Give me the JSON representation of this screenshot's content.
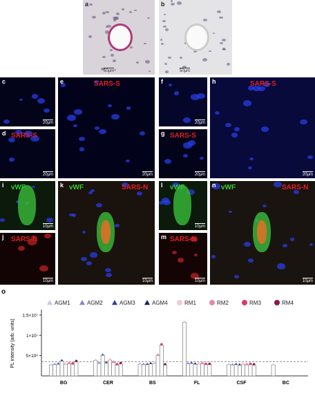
{
  "panels": [
    {
      "label": "a",
      "scale": "50µm",
      "stains": []
    },
    {
      "label": "b",
      "scale": "50µm",
      "stains": []
    },
    {
      "label": "c",
      "scale": "20µm",
      "stains": []
    },
    {
      "label": "d",
      "scale": "20µm",
      "stains": [
        {
          "text": "SARS-S",
          "color": "#e02020"
        }
      ]
    },
    {
      "label": "e",
      "scale": "20µm",
      "stains": [
        {
          "text": "SARS-S",
          "color": "#e02020"
        }
      ]
    },
    {
      "label": "f",
      "scale": "20µm",
      "stains": []
    },
    {
      "label": "g",
      "scale": "20µm",
      "stains": [
        {
          "text": "SARS-S",
          "color": "#e02020"
        }
      ]
    },
    {
      "label": "h",
      "scale": "20µm",
      "stains": [
        {
          "text": "SARS-S",
          "color": "#e02020"
        }
      ]
    },
    {
      "label": "i",
      "scale": "10µm",
      "stains": [
        {
          "text": "vWF",
          "color": "#33cc33"
        }
      ]
    },
    {
      "label": "j",
      "scale": "10µm",
      "stains": [
        {
          "text": "SARS-N",
          "color": "#e02020"
        }
      ]
    },
    {
      "label": "k",
      "scale": "10µm",
      "stains": [
        {
          "text": "vWF",
          "color": "#33cc33"
        },
        {
          "text": "SARS-N",
          "color": "#e02020"
        }
      ]
    },
    {
      "label": "l",
      "scale": "10µm",
      "stains": [
        {
          "text": "vWF",
          "color": "#33cc33"
        }
      ]
    },
    {
      "label": "m",
      "scale": "10µm",
      "stains": [
        {
          "text": "SARS-N",
          "color": "#e02020"
        }
      ]
    },
    {
      "label": "n",
      "scale": "10µm",
      "stains": [
        {
          "text": "vWF",
          "color": "#33cc33"
        },
        {
          "text": "SARS-N",
          "color": "#e02020"
        }
      ]
    }
  ],
  "chart_data": {
    "type": "bar",
    "panel_label": "o",
    "y_label": "PL intensity (arb. units)",
    "categories": [
      "BG",
      "CER",
      "BS",
      "FL",
      "CSF",
      "BC"
    ],
    "series": [
      {
        "name": "AGM1",
        "color": "#c5c5ea",
        "shape": "triangle",
        "values": [
          2700000,
          3800000,
          2900000,
          13200000,
          2800000,
          2700000
        ]
      },
      {
        "name": "AGM2",
        "color": "#7f86d0",
        "shape": "triangle",
        "values": [
          2800000,
          3100000,
          2800000,
          3000000,
          2700000,
          null
        ]
      },
      {
        "name": "AGM3",
        "color": "#2c3fa8",
        "shape": "triangle",
        "values": [
          2900000,
          5100000,
          2800000,
          3100000,
          2800000,
          null
        ]
      },
      {
        "name": "AGM4",
        "color": "#15206e",
        "shape": "triangle",
        "values": [
          3700000,
          3200000,
          3000000,
          2900000,
          2700000,
          null
        ]
      },
      {
        "name": "RM1",
        "color": "#f5c8d4",
        "shape": "circle",
        "values": [
          2800000,
          3900000,
          3000000,
          2900000,
          2800000,
          null
        ]
      },
      {
        "name": "RM2",
        "color": "#e68aa8",
        "shape": "circle",
        "values": [
          3000000,
          3300000,
          5000000,
          3000000,
          2700000,
          null
        ]
      },
      {
        "name": "RM3",
        "color": "#d43a7a",
        "shape": "circle",
        "values": [
          2900000,
          2700000,
          7600000,
          2800000,
          2800000,
          null
        ]
      },
      {
        "name": "RM4",
        "color": "#8b1a4a",
        "shape": "circle",
        "values": [
          3500000,
          3000000,
          2700000,
          2800000,
          2700000,
          null
        ]
      }
    ],
    "ylim": [
      0,
      16000000
    ],
    "yticks": [
      {
        "value": 5000000,
        "label": "5×10⁶"
      },
      {
        "value": 10000000,
        "label": "1×10⁷"
      },
      {
        "value": 15000000,
        "label": "1.5×10⁷"
      }
    ],
    "reference_line": 3500000
  }
}
